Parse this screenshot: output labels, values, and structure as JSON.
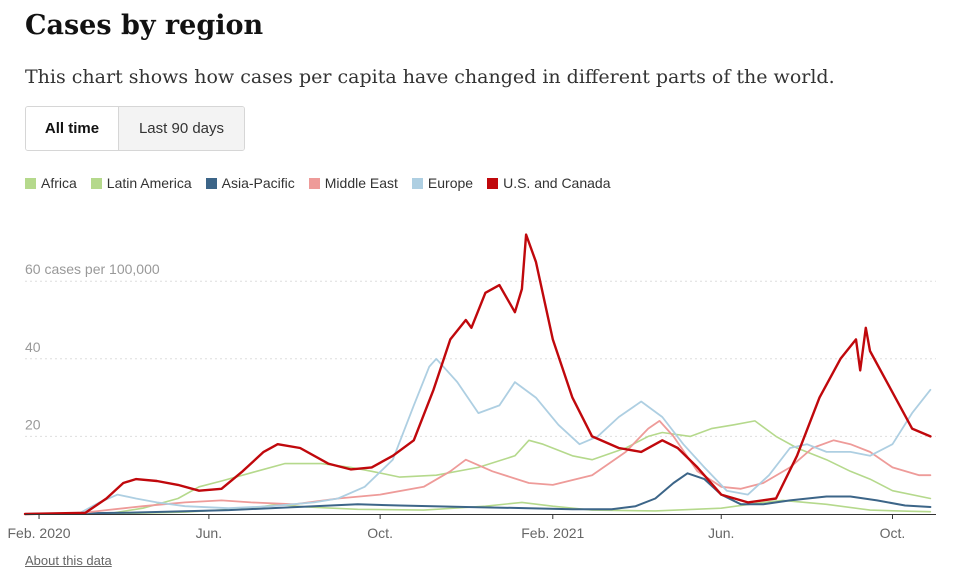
{
  "header": {
    "title": "Cases by region",
    "subtitle": "This chart shows how cases per capita have changed in different parts of the world."
  },
  "toggle": {
    "active_label": "All time",
    "inactive_label": "Last 90 days"
  },
  "footer": {
    "link_label": "About this data"
  },
  "chart_data": {
    "type": "line",
    "ylabel_unit": "cases per 100,000",
    "ylim": [
      0,
      75
    ],
    "yticks": [
      {
        "value": 20,
        "label": "20"
      },
      {
        "value": 40,
        "label": "40"
      },
      {
        "value": 60,
        "label": "60 cases per 100,000"
      }
    ],
    "xlim": [
      "2020-01-22",
      "2021-11-01"
    ],
    "xticks": [
      {
        "date": "2020-02-01",
        "label": "Feb. 2020"
      },
      {
        "date": "2020-06-01",
        "label": "Jun."
      },
      {
        "date": "2020-10-01",
        "label": "Oct."
      },
      {
        "date": "2021-02-01",
        "label": "Feb. 2021"
      },
      {
        "date": "2021-06-01",
        "label": "Jun."
      },
      {
        "date": "2021-10-01",
        "label": "Oct."
      }
    ],
    "grid": true,
    "legend_position": "top-left",
    "series": [
      {
        "name": "Africa",
        "color": "#b5d98c",
        "width": 1.6,
        "points": [
          [
            "2020-01-22",
            0
          ],
          [
            "2020-04-01",
            0.1
          ],
          [
            "2020-05-15",
            0.5
          ],
          [
            "2020-07-01",
            1.5
          ],
          [
            "2020-07-20",
            2.5
          ],
          [
            "2020-08-10",
            1.8
          ],
          [
            "2020-09-15",
            1.2
          ],
          [
            "2020-11-01",
            1
          ],
          [
            "2020-12-15",
            2
          ],
          [
            "2021-01-10",
            3
          ],
          [
            "2021-02-01",
            2
          ],
          [
            "2021-03-01",
            1
          ],
          [
            "2021-04-15",
            0.8
          ],
          [
            "2021-06-01",
            1.5
          ],
          [
            "2021-07-01",
            3
          ],
          [
            "2021-07-15",
            3.5
          ],
          [
            "2021-08-15",
            2.5
          ],
          [
            "2021-09-15",
            1
          ],
          [
            "2021-10-15",
            0.7
          ],
          [
            "2021-10-28",
            0.6
          ]
        ]
      },
      {
        "name": "Latin America",
        "color": "#b5d98c",
        "width": 1.6,
        "points": [
          [
            "2020-01-22",
            0
          ],
          [
            "2020-03-20",
            0
          ],
          [
            "2020-04-15",
            1.5
          ],
          [
            "2020-05-10",
            4
          ],
          [
            "2020-05-25",
            7
          ],
          [
            "2020-06-10",
            8.5
          ],
          [
            "2020-07-05",
            11
          ],
          [
            "2020-07-25",
            13
          ],
          [
            "2020-08-20",
            13
          ],
          [
            "2020-09-10",
            12
          ],
          [
            "2020-09-25",
            11
          ],
          [
            "2020-10-15",
            9.5
          ],
          [
            "2020-11-10",
            10
          ],
          [
            "2020-12-10",
            12
          ],
          [
            "2021-01-05",
            15
          ],
          [
            "2021-01-15",
            19
          ],
          [
            "2021-01-25",
            18
          ],
          [
            "2021-02-15",
            15
          ],
          [
            "2021-03-01",
            14
          ],
          [
            "2021-03-25",
            17
          ],
          [
            "2021-04-10",
            20
          ],
          [
            "2021-04-20",
            21
          ],
          [
            "2021-05-10",
            20
          ],
          [
            "2021-05-25",
            22
          ],
          [
            "2021-06-10",
            23
          ],
          [
            "2021-06-25",
            24
          ],
          [
            "2021-07-10",
            20
          ],
          [
            "2021-07-25",
            17
          ],
          [
            "2021-08-15",
            14
          ],
          [
            "2021-09-01",
            11
          ],
          [
            "2021-09-15",
            9
          ],
          [
            "2021-10-01",
            6
          ],
          [
            "2021-10-28",
            4
          ]
        ]
      },
      {
        "name": "Asia-Pacific",
        "color": "#3c6588",
        "width": 2,
        "points": [
          [
            "2020-01-22",
            0
          ],
          [
            "2020-04-01",
            0.3
          ],
          [
            "2020-06-15",
            1
          ],
          [
            "2020-08-15",
            2
          ],
          [
            "2020-09-15",
            2.5
          ],
          [
            "2020-10-15",
            2.2
          ],
          [
            "2020-12-01",
            1.8
          ],
          [
            "2021-01-15",
            1.5
          ],
          [
            "2021-02-15",
            1.2
          ],
          [
            "2021-03-15",
            1.2
          ],
          [
            "2021-04-01",
            2
          ],
          [
            "2021-04-15",
            4
          ],
          [
            "2021-04-28",
            8
          ],
          [
            "2021-05-08",
            10.5
          ],
          [
            "2021-05-20",
            9
          ],
          [
            "2021-06-01",
            5
          ],
          [
            "2021-06-15",
            2.5
          ],
          [
            "2021-07-01",
            2.5
          ],
          [
            "2021-07-20",
            3.5
          ],
          [
            "2021-08-15",
            4.5
          ],
          [
            "2021-09-01",
            4.5
          ],
          [
            "2021-09-20",
            3.5
          ],
          [
            "2021-10-10",
            2.2
          ],
          [
            "2021-10-28",
            1.8
          ]
        ]
      },
      {
        "name": "Middle East",
        "color": "#ee9b99",
        "width": 1.8,
        "points": [
          [
            "2020-01-22",
            0
          ],
          [
            "2020-03-01",
            0.2
          ],
          [
            "2020-03-20",
            1
          ],
          [
            "2020-04-15",
            2
          ],
          [
            "2020-05-15",
            3
          ],
          [
            "2020-06-10",
            3.5
          ],
          [
            "2020-07-01",
            3
          ],
          [
            "2020-08-01",
            2.5
          ],
          [
            "2020-09-01",
            4
          ],
          [
            "2020-10-01",
            5
          ],
          [
            "2020-11-01",
            7
          ],
          [
            "2020-11-20",
            11
          ],
          [
            "2020-12-01",
            14
          ],
          [
            "2020-12-20",
            11
          ],
          [
            "2021-01-15",
            8
          ],
          [
            "2021-02-01",
            7.5
          ],
          [
            "2021-03-01",
            10
          ],
          [
            "2021-03-25",
            16
          ],
          [
            "2021-04-10",
            22
          ],
          [
            "2021-04-18",
            24
          ],
          [
            "2021-04-28",
            20
          ],
          [
            "2021-05-15",
            11
          ],
          [
            "2021-06-01",
            7
          ],
          [
            "2021-06-15",
            6.5
          ],
          [
            "2021-07-01",
            8
          ],
          [
            "2021-07-20",
            12
          ],
          [
            "2021-08-05",
            17
          ],
          [
            "2021-08-20",
            19
          ],
          [
            "2021-09-01",
            18
          ],
          [
            "2021-09-15",
            16
          ],
          [
            "2021-10-01",
            12
          ],
          [
            "2021-10-20",
            10
          ],
          [
            "2021-10-28",
            10
          ]
        ]
      },
      {
        "name": "Europe",
        "color": "#aecfe2",
        "width": 1.8,
        "points": [
          [
            "2020-01-22",
            0
          ],
          [
            "2020-03-01",
            0.2
          ],
          [
            "2020-03-15",
            3
          ],
          [
            "2020-03-28",
            5
          ],
          [
            "2020-04-10",
            4
          ],
          [
            "2020-04-25",
            3
          ],
          [
            "2020-05-15",
            2
          ],
          [
            "2020-06-15",
            1.5
          ],
          [
            "2020-07-15",
            2
          ],
          [
            "2020-08-15",
            3
          ],
          [
            "2020-09-01",
            4
          ],
          [
            "2020-09-20",
            7
          ],
          [
            "2020-10-10",
            14
          ],
          [
            "2020-10-25",
            28
          ],
          [
            "2020-11-05",
            38
          ],
          [
            "2020-11-10",
            40
          ],
          [
            "2020-11-25",
            34
          ],
          [
            "2020-12-10",
            26
          ],
          [
            "2020-12-25",
            28
          ],
          [
            "2021-01-05",
            34
          ],
          [
            "2021-01-20",
            30
          ],
          [
            "2021-02-05",
            23
          ],
          [
            "2021-02-20",
            18
          ],
          [
            "2021-03-05",
            20
          ],
          [
            "2021-03-20",
            25
          ],
          [
            "2021-04-05",
            29
          ],
          [
            "2021-04-20",
            25
          ],
          [
            "2021-05-05",
            18
          ],
          [
            "2021-05-20",
            12
          ],
          [
            "2021-06-05",
            6
          ],
          [
            "2021-06-20",
            5
          ],
          [
            "2021-07-05",
            10
          ],
          [
            "2021-07-20",
            17
          ],
          [
            "2021-08-01",
            18
          ],
          [
            "2021-08-15",
            16
          ],
          [
            "2021-09-01",
            16
          ],
          [
            "2021-09-15",
            15
          ],
          [
            "2021-10-01",
            18
          ],
          [
            "2021-10-15",
            26
          ],
          [
            "2021-10-28",
            32
          ]
        ]
      },
      {
        "name": "U.S. and Canada",
        "color": "#c0080c",
        "width": 2.4,
        "points": [
          [
            "2020-01-22",
            0
          ],
          [
            "2020-03-05",
            0.3
          ],
          [
            "2020-03-20",
            4
          ],
          [
            "2020-04-01",
            8
          ],
          [
            "2020-04-10",
            9
          ],
          [
            "2020-04-25",
            8.5
          ],
          [
            "2020-05-10",
            7.5
          ],
          [
            "2020-05-25",
            6
          ],
          [
            "2020-06-10",
            6.5
          ],
          [
            "2020-06-25",
            11
          ],
          [
            "2020-07-10",
            16
          ],
          [
            "2020-07-20",
            18
          ],
          [
            "2020-08-05",
            17
          ],
          [
            "2020-08-25",
            13
          ],
          [
            "2020-09-10",
            11.5
          ],
          [
            "2020-09-25",
            12
          ],
          [
            "2020-10-10",
            15
          ],
          [
            "2020-10-25",
            19
          ],
          [
            "2020-11-08",
            32
          ],
          [
            "2020-11-20",
            45
          ],
          [
            "2020-12-01",
            50
          ],
          [
            "2020-12-05",
            48
          ],
          [
            "2020-12-15",
            57
          ],
          [
            "2020-12-25",
            59
          ],
          [
            "2021-01-05",
            52
          ],
          [
            "2021-01-10",
            58
          ],
          [
            "2021-01-13",
            72
          ],
          [
            "2021-01-20",
            65
          ],
          [
            "2021-02-01",
            45
          ],
          [
            "2021-02-15",
            30
          ],
          [
            "2021-03-01",
            20
          ],
          [
            "2021-03-20",
            17
          ],
          [
            "2021-04-05",
            16
          ],
          [
            "2021-04-20",
            19
          ],
          [
            "2021-05-01",
            17
          ],
          [
            "2021-05-15",
            12
          ],
          [
            "2021-06-01",
            5
          ],
          [
            "2021-06-20",
            3
          ],
          [
            "2021-07-10",
            4
          ],
          [
            "2021-07-25",
            15
          ],
          [
            "2021-08-10",
            30
          ],
          [
            "2021-08-25",
            40
          ],
          [
            "2021-09-05",
            45
          ],
          [
            "2021-09-08",
            37
          ],
          [
            "2021-09-12",
            48
          ],
          [
            "2021-09-15",
            42
          ],
          [
            "2021-09-30",
            32
          ],
          [
            "2021-10-15",
            22
          ],
          [
            "2021-10-28",
            20
          ]
        ]
      }
    ]
  }
}
